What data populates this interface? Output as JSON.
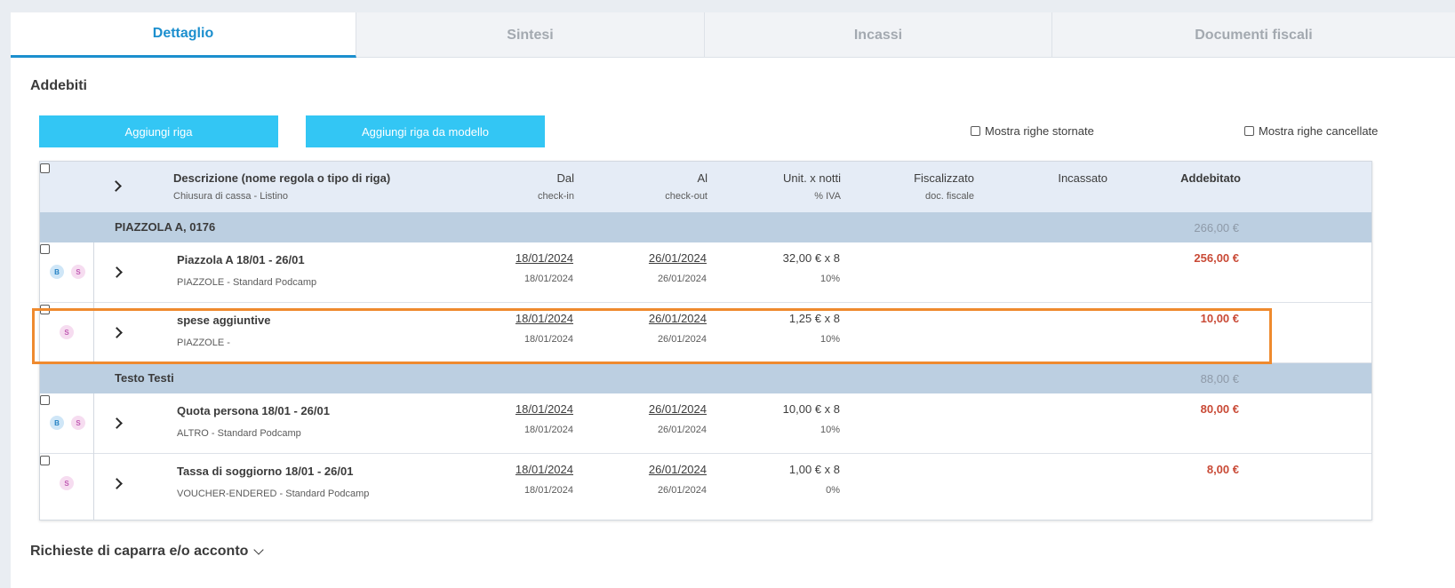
{
  "tabs": [
    {
      "label": "Dettaglio",
      "active": true
    },
    {
      "label": "Sintesi",
      "active": false
    },
    {
      "label": "Incassi",
      "active": false
    },
    {
      "label": "Documenti fiscali",
      "active": false
    }
  ],
  "section_title": "Addebiti",
  "buttons": {
    "add_row": "Aggiungi riga",
    "add_row_template": "Aggiungi riga da modello"
  },
  "options": {
    "show_reversed": "Mostra righe stornate",
    "show_cancelled": "Mostra righe cancellate"
  },
  "table": {
    "headers": {
      "description": "Descrizione (nome regola o tipo di riga)",
      "description_sub": "Chiusura di cassa - Listino",
      "dal": "Dal",
      "dal_sub": "check-in",
      "al": "Al",
      "al_sub": "check-out",
      "unit": "Unit. x notti",
      "unit_sub": "% IVA",
      "fiscal": "Fiscalizzato",
      "fiscal_sub": "doc. fiscale",
      "incassato": "Incassato",
      "addebitato": "Addebitato"
    },
    "groups": [
      {
        "name": "PIAZZOLA A, 0176",
        "total": "266,00 €",
        "rows": [
          {
            "badges": [
              "B",
              "S"
            ],
            "title": "Piazzola A 18/01 - 26/01",
            "subtitle": "PIAZZOLE - Standard Podcamp",
            "dal": "18/01/2024",
            "dal_sub": "18/01/2024",
            "al": "26/01/2024",
            "al_sub": "26/01/2024",
            "unit": "32,00 € x 8",
            "vat": "10%",
            "amount": "256,00 €"
          },
          {
            "badges": [
              "S"
            ],
            "title": "spese aggiuntive",
            "subtitle": "PIAZZOLE -",
            "dal": "18/01/2024",
            "dal_sub": "18/01/2024",
            "al": "26/01/2024",
            "al_sub": "26/01/2024",
            "unit": "1,25 € x 8",
            "vat": "10%",
            "amount": "10,00 €"
          }
        ]
      },
      {
        "name": "Testo Testi",
        "total": "88,00 €",
        "rows": [
          {
            "badges": [
              "B",
              "S"
            ],
            "title": "Quota persona 18/01 - 26/01",
            "subtitle": "ALTRO - Standard Podcamp",
            "dal": "18/01/2024",
            "dal_sub": "18/01/2024",
            "al": "26/01/2024",
            "al_sub": "26/01/2024",
            "unit": "10,00 € x 8",
            "vat": "10%",
            "amount": "80,00 €"
          },
          {
            "badges": [
              "S"
            ],
            "title": "Tassa di soggiorno 18/01 - 26/01",
            "subtitle": "VOUCHER-ENDERED - Standard Podcamp",
            "dal": "18/01/2024",
            "dal_sub": "18/01/2024",
            "al": "26/01/2024",
            "al_sub": "26/01/2024",
            "unit": "1,00 € x 8",
            "vat": "0%",
            "amount": "8,00 €"
          }
        ]
      }
    ]
  },
  "footer_section": "Richieste di caparra e/o acconto",
  "colors": {
    "accent": "#1c8fce",
    "button": "#33c6f4",
    "amount": "#c94a36",
    "group_bg": "#bccfe1",
    "highlight": "#ef8a2e"
  }
}
